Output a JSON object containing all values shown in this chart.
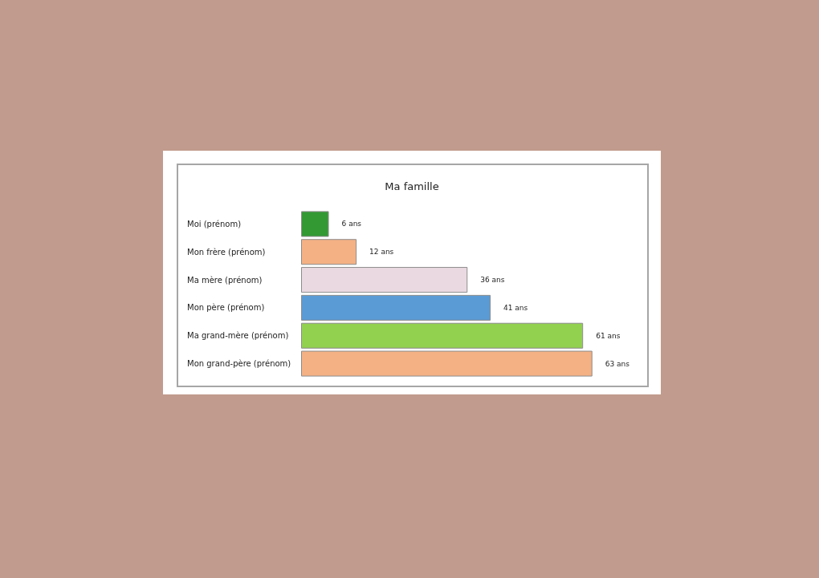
{
  "chart_data": {
    "type": "bar",
    "title": "Ma famille",
    "orientation": "horizontal",
    "categories": [
      "Moi (prénom)",
      "Mon frère (prénom)",
      "Ma mère (prénom)",
      "Mon père (prénom)",
      "Ma grand-mère (prénom)",
      "Mon grand-père (prénom)"
    ],
    "values": [
      6,
      12,
      36,
      41,
      61,
      63
    ],
    "colors": [
      "#339933",
      "#f4b183",
      "#ead9e0",
      "#5b9bd5",
      "#92d050",
      "#f4b183"
    ],
    "value_labels": [
      "6 ans",
      "12 ans",
      "36 ans",
      "41 ans",
      "61 ans",
      "63 ans"
    ],
    "grid": false
  }
}
